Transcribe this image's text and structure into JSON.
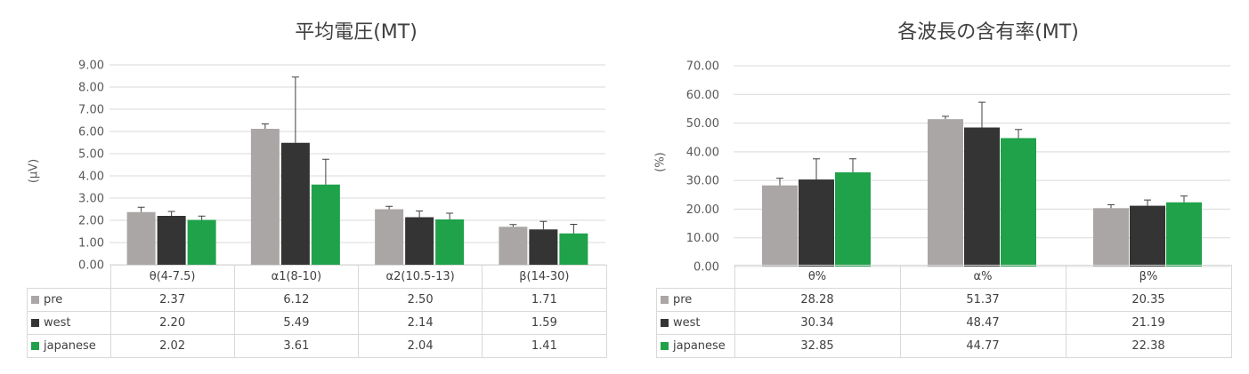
{
  "colors": {
    "pre": "#aba6a6",
    "west": "#343434",
    "japanese": "#1fa24a",
    "grid": "#d9d9d9",
    "axis_text": "#595959"
  },
  "chart_data": [
    {
      "type": "bar",
      "title": "平均電圧(MT)",
      "ylabel": "(μV)",
      "categories": [
        "θ(4-7.5)",
        "α1(8-10)",
        "α2(10.5-13)",
        "β(14-30)"
      ],
      "ylim": [
        0,
        9
      ],
      "yticks": [
        "0.00",
        "1.00",
        "2.00",
        "3.00",
        "4.00",
        "5.00",
        "6.00",
        "7.00",
        "8.00",
        "9.00"
      ],
      "grid": true,
      "legend": "data-table",
      "series": [
        {
          "name": "pre",
          "values": [
            2.37,
            6.12,
            2.5,
            1.71
          ],
          "labels": [
            "2.37",
            "6.12",
            "2.50",
            "1.71"
          ],
          "err": [
            0.22,
            0.22,
            0.13,
            0.1
          ]
        },
        {
          "name": "west",
          "values": [
            2.2,
            5.49,
            2.14,
            1.59
          ],
          "labels": [
            "2.20",
            "5.49",
            "2.14",
            "1.59"
          ],
          "err": [
            0.2,
            2.96,
            0.28,
            0.36
          ]
        },
        {
          "name": "japanese",
          "values": [
            2.02,
            3.61,
            2.04,
            1.41
          ],
          "labels": [
            "2.02",
            "3.61",
            "2.04",
            "1.41"
          ],
          "err": [
            0.17,
            1.14,
            0.28,
            0.41
          ]
        }
      ]
    },
    {
      "type": "bar",
      "title": "各波長の含有率(MT)",
      "ylabel": "(%)",
      "categories": [
        "θ%",
        "α%",
        "β%"
      ],
      "ylim": [
        0,
        70
      ],
      "yticks": [
        "0.00",
        "10.00",
        "20.00",
        "30.00",
        "40.00",
        "50.00",
        "60.00",
        "70.00"
      ],
      "grid": true,
      "legend": "data-table",
      "series": [
        {
          "name": "pre",
          "values": [
            28.28,
            51.37,
            20.35
          ],
          "labels": [
            "28.28",
            "51.37",
            "20.35"
          ],
          "err": [
            2.5,
            1.0,
            1.2
          ]
        },
        {
          "name": "west",
          "values": [
            30.34,
            48.47,
            21.19
          ],
          "labels": [
            "30.34",
            "48.47",
            "21.19"
          ],
          "err": [
            7.2,
            8.8,
            2.0
          ]
        },
        {
          "name": "japanese",
          "values": [
            32.85,
            44.77,
            22.38
          ],
          "labels": [
            "32.85",
            "44.77",
            "22.38"
          ],
          "err": [
            4.7,
            3.0,
            2.2
          ]
        }
      ]
    }
  ]
}
